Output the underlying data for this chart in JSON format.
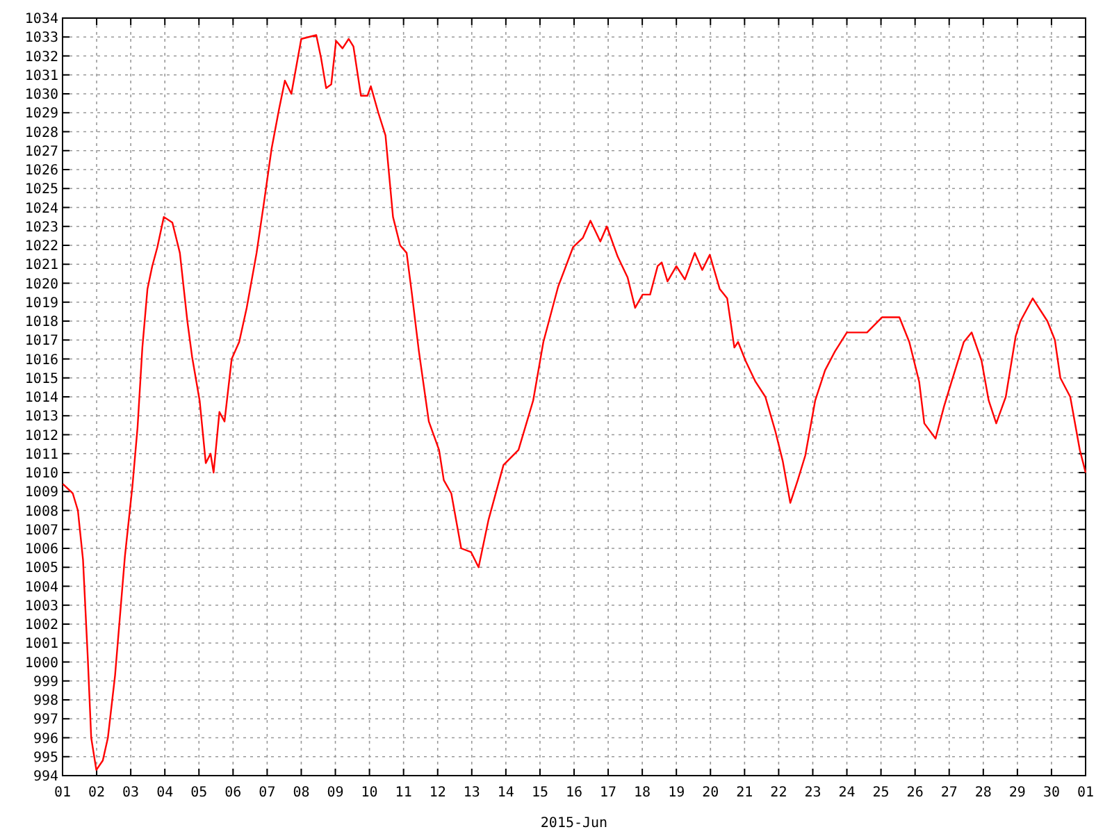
{
  "chart_data": {
    "type": "line",
    "xlabel": "2015-Jun",
    "x": [
      "2015-06-01T00:15",
      "2015-06-01T07:12",
      "2015-06-01T10:48",
      "2015-06-01T14:24",
      "2015-06-01T17:46",
      "2015-06-01T20:10",
      "2015-06-01T23:46",
      "2015-06-02T04:19",
      "2015-06-02T07:55",
      "2015-06-02T12:58",
      "2015-06-02T19:55",
      "2015-06-03T01:12",
      "2015-06-03T04:48",
      "2015-06-03T08:10",
      "2015-06-03T11:46",
      "2015-06-03T15:07",
      "2015-06-03T18:43",
      "2015-06-03T23:17",
      "2015-06-04T05:17",
      "2015-06-04T10:34",
      "2015-06-04T15:50",
      "2015-06-04T19:12",
      "2015-06-05T00:29",
      "2015-06-05T04:48",
      "2015-06-05T08:10",
      "2015-06-05T10:19",
      "2015-06-05T14:24",
      "2015-06-05T18:00",
      "2015-06-05T23:02",
      "2015-06-06T04:19",
      "2015-06-06T09:36",
      "2015-06-06T16:34",
      "2015-06-06T21:50",
      "2015-06-07T03:07",
      "2015-06-07T08:24",
      "2015-06-07T12:29",
      "2015-06-07T17:02",
      "2015-06-08T00:00",
      "2015-06-08T05:17",
      "2015-06-08T10:34",
      "2015-06-08T13:55",
      "2015-06-08T17:31",
      "2015-06-08T21:07",
      "2015-06-09T00:29",
      "2015-06-09T05:02",
      "2015-06-09T09:22",
      "2015-06-09T12:43",
      "2015-06-09T18:00",
      "2015-06-09T22:34",
      "2015-06-10T00:58",
      "2015-06-10T06:14",
      "2015-06-10T11:17",
      "2015-06-10T16:34",
      "2015-06-10T21:36",
      "2015-06-11T02:10",
      "2015-06-11T05:46",
      "2015-06-11T10:48",
      "2015-06-11T17:46",
      "2015-06-12T00:58",
      "2015-06-12T04:19",
      "2015-06-12T09:36",
      "2015-06-12T16:34",
      "2015-06-12T23:31",
      "2015-06-13T04:48",
      "2015-06-13T11:46",
      "2015-06-13T22:19",
      "2015-06-14T08:53",
      "2015-06-14T19:12",
      "2015-06-15T02:24",
      "2015-06-15T12:43",
      "2015-06-15T23:17",
      "2015-06-16T06:14",
      "2015-06-16T11:31",
      "2015-06-16T18:29",
      "2015-06-16T23:02",
      "2015-06-17T06:43",
      "2015-06-17T13:41",
      "2015-06-17T18:58",
      "2015-06-18T00:14",
      "2015-06-18T05:31",
      "2015-06-18T10:48",
      "2015-06-18T13:41",
      "2015-06-18T17:46",
      "2015-06-19T00:00",
      "2015-06-19T06:00",
      "2015-06-19T12:58",
      "2015-06-19T18:14",
      "2015-06-19T23:31",
      "2015-06-20T06:29",
      "2015-06-20T11:46",
      "2015-06-20T16:48",
      "2015-06-20T19:26",
      "2015-06-21T00:43",
      "2015-06-21T07:41",
      "2015-06-21T14:38",
      "2015-06-21T21:36",
      "2015-06-22T02:53",
      "2015-06-22T08:10",
      "2015-06-22T13:26",
      "2015-06-22T18:43",
      "2015-06-23T01:41",
      "2015-06-23T08:38",
      "2015-06-23T15:36",
      "2015-06-24T00:00",
      "2015-06-24T14:10",
      "2015-06-25T00:43",
      "2015-06-25T12:58",
      "2015-06-25T19:55",
      "2015-06-26T02:53",
      "2015-06-26T06:29",
      "2015-06-26T14:24",
      "2015-06-26T20:24",
      "2015-06-27T01:41",
      "2015-06-27T10:19",
      "2015-06-27T15:50",
      "2015-06-27T22:48",
      "2015-06-28T03:50",
      "2015-06-28T09:07",
      "2015-06-28T15:50",
      "2015-06-28T22:48",
      "2015-06-29T02:10",
      "2015-06-29T10:48",
      "2015-06-29T21:07",
      "2015-06-30T02:24",
      "2015-06-30T06:14",
      "2015-06-30T13:12",
      "2015-06-30T19:55",
      "2015-06-30T22:19",
      "2015-07-01T00:00"
    ],
    "series": [
      {
        "color": "#ff0000",
        "values": [
          1009.4,
          1008.9,
          1008.0,
          1005.4,
          1000.2,
          996.0,
          994.3,
          994.8,
          996.0,
          999.3,
          1005.6,
          1009.3,
          1012.4,
          1016.6,
          1019.7,
          1020.9,
          1021.9,
          1023.5,
          1023.2,
          1021.6,
          1018.0,
          1016.1,
          1013.8,
          1010.5,
          1011.0,
          1010.0,
          1013.2,
          1012.7,
          1016.0,
          1016.9,
          1018.7,
          1021.6,
          1024.3,
          1027.1,
          1029.2,
          1030.7,
          1030.0,
          1032.9,
          1033.0,
          1033.1,
          1031.9,
          1030.3,
          1030.5,
          1032.8,
          1032.4,
          1032.9,
          1032.5,
          1029.9,
          1029.9,
          1030.4,
          1029.0,
          1027.8,
          1023.5,
          1022.0,
          1021.6,
          1019.5,
          1016.4,
          1012.7,
          1011.2,
          1009.6,
          1008.9,
          1006.0,
          1005.8,
          1005.0,
          1007.5,
          1010.4,
          1011.2,
          1013.8,
          1016.9,
          1019.8,
          1021.9,
          1022.4,
          1023.3,
          1022.2,
          1023.0,
          1021.4,
          1020.3,
          1018.7,
          1019.4,
          1019.4,
          1020.9,
          1021.1,
          1020.1,
          1020.9,
          1020.2,
          1021.6,
          1020.7,
          1021.5,
          1019.7,
          1019.2,
          1016.6,
          1016.9,
          1015.9,
          1014.8,
          1014.0,
          1012.2,
          1010.6,
          1008.4,
          1009.6,
          1010.9,
          1013.8,
          1015.4,
          1016.4,
          1017.4,
          1017.4,
          1018.2,
          1018.2,
          1016.9,
          1014.8,
          1012.6,
          1011.8,
          1013.5,
          1014.8,
          1016.9,
          1017.4,
          1015.9,
          1013.8,
          1012.6,
          1014.0,
          1017.2,
          1018.0,
          1019.2,
          1018.0,
          1017.0,
          1015.0,
          1014.0,
          1011.2,
          1010.5,
          1010.0
        ]
      }
    ],
    "xlim": [
      "2015-06-01",
      "2015-07-01"
    ],
    "xticks": [
      {
        "value": "2015-06-01",
        "label": "01"
      },
      {
        "value": "2015-06-02",
        "label": "02"
      },
      {
        "value": "2015-06-03",
        "label": "03"
      },
      {
        "value": "2015-06-04",
        "label": "04"
      },
      {
        "value": "2015-06-05",
        "label": "05"
      },
      {
        "value": "2015-06-06",
        "label": "06"
      },
      {
        "value": "2015-06-07",
        "label": "07"
      },
      {
        "value": "2015-06-08",
        "label": "08"
      },
      {
        "value": "2015-06-09",
        "label": "09"
      },
      {
        "value": "2015-06-10",
        "label": "10"
      },
      {
        "value": "2015-06-11",
        "label": "11"
      },
      {
        "value": "2015-06-12",
        "label": "12"
      },
      {
        "value": "2015-06-13",
        "label": "13"
      },
      {
        "value": "2015-06-14",
        "label": "14"
      },
      {
        "value": "2015-06-15",
        "label": "15"
      },
      {
        "value": "2015-06-16",
        "label": "16"
      },
      {
        "value": "2015-06-17",
        "label": "17"
      },
      {
        "value": "2015-06-18",
        "label": "18"
      },
      {
        "value": "2015-06-19",
        "label": "19"
      },
      {
        "value": "2015-06-20",
        "label": "20"
      },
      {
        "value": "2015-06-21",
        "label": "21"
      },
      {
        "value": "2015-06-22",
        "label": "22"
      },
      {
        "value": "2015-06-23",
        "label": "23"
      },
      {
        "value": "2015-06-24",
        "label": "24"
      },
      {
        "value": "2015-06-25",
        "label": "25"
      },
      {
        "value": "2015-06-26",
        "label": "26"
      },
      {
        "value": "2015-06-27",
        "label": "27"
      },
      {
        "value": "2015-06-28",
        "label": "28"
      },
      {
        "value": "2015-06-29",
        "label": "29"
      },
      {
        "value": "2015-06-30",
        "label": "30"
      },
      {
        "value": "2015-07-01",
        "label": "01"
      }
    ],
    "ylim": [
      994,
      1034
    ],
    "yticks": [
      994,
      995,
      996,
      997,
      998,
      999,
      1000,
      1001,
      1002,
      1003,
      1004,
      1005,
      1006,
      1007,
      1008,
      1009,
      1010,
      1011,
      1012,
      1013,
      1014,
      1015,
      1016,
      1017,
      1018,
      1019,
      1020,
      1021,
      1022,
      1023,
      1024,
      1025,
      1026,
      1027,
      1028,
      1029,
      1030,
      1031,
      1032,
      1033,
      1034
    ],
    "grid": true,
    "marker": "none",
    "line_style": "solid"
  }
}
